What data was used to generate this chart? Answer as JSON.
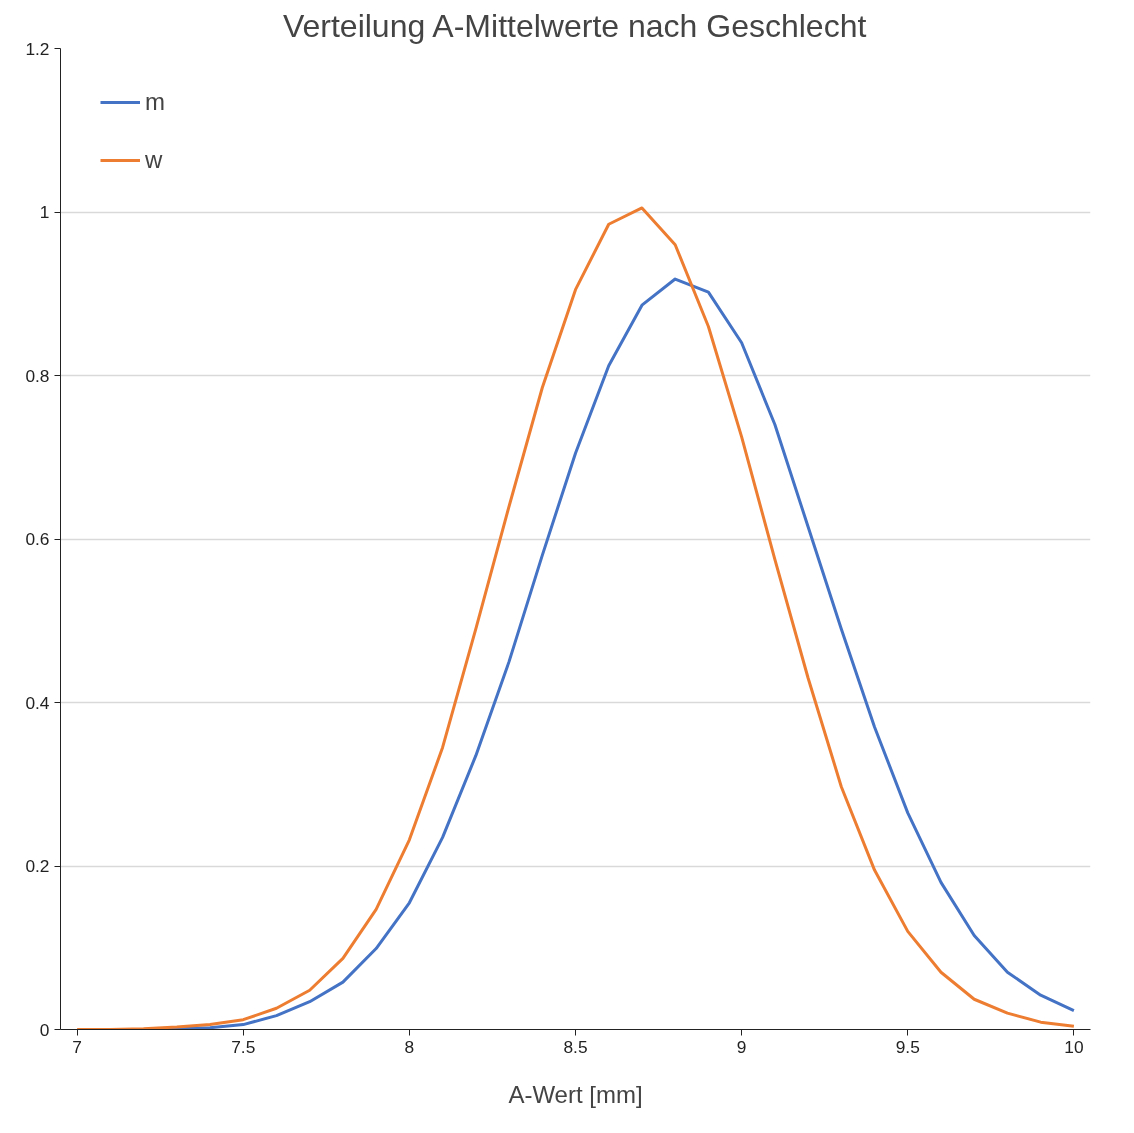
{
  "chart_data": {
    "type": "line",
    "title": "Verteilung A-Mittelwerte nach Geschlecht",
    "xlabel": "A-Wert [mm]",
    "x": [
      7.0,
      7.1,
      7.2,
      7.3,
      7.4,
      7.5,
      7.6,
      7.7,
      7.8,
      7.9,
      8.0,
      8.1,
      8.2,
      8.3,
      8.4,
      8.5,
      8.6,
      8.7,
      8.8,
      8.9,
      9.0,
      9.1,
      9.2,
      9.3,
      9.4,
      9.5,
      9.6,
      9.7,
      9.8,
      9.9,
      10.0
    ],
    "series": [
      {
        "name": "m",
        "color": "#4472c4",
        "values": [
          null,
          null,
          0,
          0.001,
          0.002,
          0.006,
          0.017,
          0.034,
          0.058,
          0.099,
          0.155,
          0.235,
          0.335,
          0.45,
          0.58,
          0.705,
          0.812,
          0.886,
          0.918,
          0.902,
          0.84,
          0.74,
          0.615,
          0.49,
          0.37,
          0.265,
          0.18,
          0.115,
          0.07,
          0.042,
          0.023
        ]
      },
      {
        "name": "w",
        "color": "#ed7d31",
        "values": [
          0,
          0,
          0.001,
          0.003,
          0.006,
          0.012,
          0.026,
          0.048,
          0.087,
          0.147,
          0.232,
          0.345,
          0.49,
          0.64,
          0.785,
          0.905,
          0.985,
          1.005,
          0.96,
          0.86,
          0.725,
          0.575,
          0.43,
          0.297,
          0.195,
          0.12,
          0.07,
          0.037,
          0.02,
          0.009,
          0.004
        ]
      }
    ],
    "xlim": [
      6.95,
      10.05
    ],
    "xticks": [
      7,
      7.5,
      8,
      8.5,
      9,
      9.5,
      10
    ],
    "ylim": [
      0,
      1.2
    ],
    "yticks": [
      0,
      0.2,
      0.4,
      0.6,
      0.8,
      1,
      1.2
    ],
    "grid": "y",
    "legend": "top left",
    "marker": "none",
    "line_style": "solid"
  }
}
